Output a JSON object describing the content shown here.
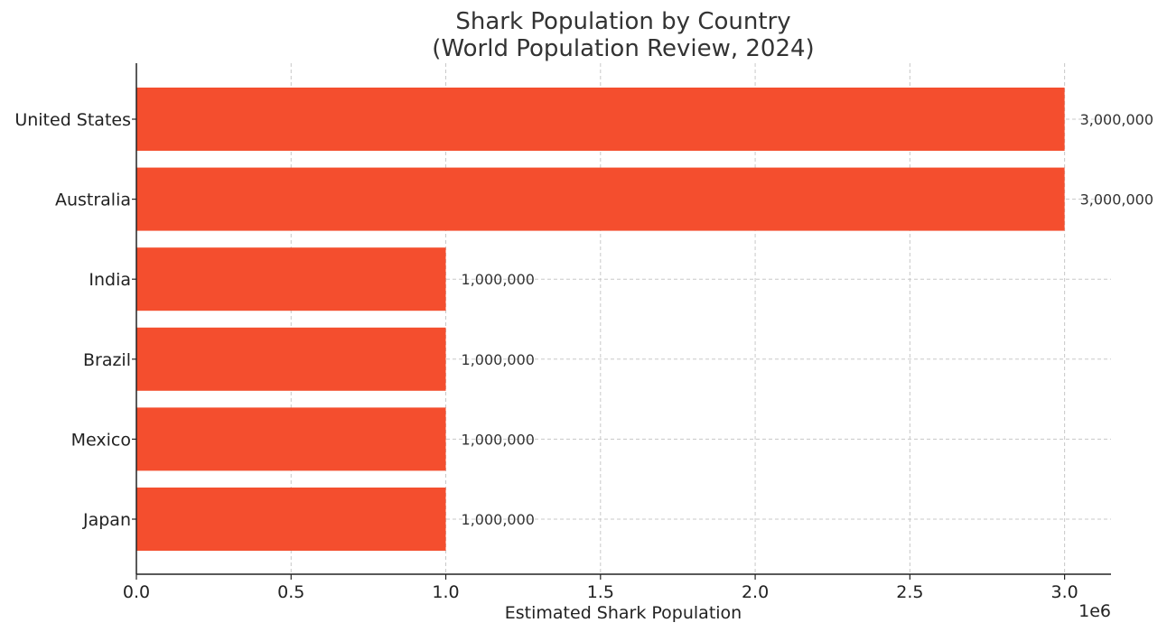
{
  "chart_data": {
    "type": "bar",
    "orientation": "horizontal",
    "title": "Shark Population by Country",
    "subtitle": "(World Population Review, 2024)",
    "xlabel": "Estimated Shark Population",
    "ylabel": "",
    "x_scale_label": "1e6",
    "xlim": [
      0,
      3150000
    ],
    "x_ticks": [
      0,
      500000,
      1000000,
      1500000,
      2000000,
      2500000,
      3000000
    ],
    "x_tick_labels": [
      "0.0",
      "0.5",
      "1.0",
      "1.5",
      "2.0",
      "2.5",
      "3.0"
    ],
    "categories": [
      "United States",
      "Australia",
      "India",
      "Brazil",
      "Mexico",
      "Japan"
    ],
    "values": [
      3000000,
      3000000,
      1000000,
      1000000,
      1000000,
      1000000
    ],
    "data_labels": [
      "3,000,000",
      "3,000,000",
      "1,000,000",
      "1,000,000",
      "1,000,000",
      "1,000,000"
    ],
    "bar_color": "#f44e2e",
    "grid": true,
    "legend": "none"
  }
}
